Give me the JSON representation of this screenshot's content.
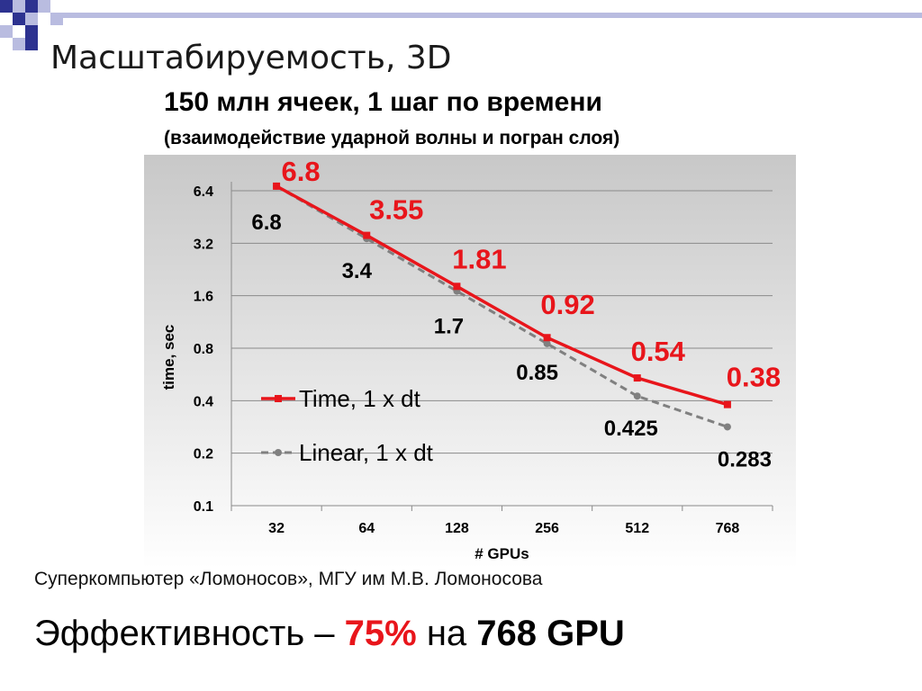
{
  "slide": {
    "title": "Масштабируемость, 3D",
    "footer": "Суперкомпьютер «Ломоносов», МГУ им М.В. Ломоносова",
    "summary": {
      "prefix": "Эффективность – ",
      "efficiency": "75%",
      "middle": " на ",
      "gpus": "768 GPU"
    }
  },
  "colors": {
    "time_series": "#e8151b",
    "linear_series": "#808080",
    "plot_background_top": "#c8c8c8",
    "plot_background_bottom": "#ffffff",
    "deco_square_dark": "#2d3290",
    "deco_square_light": "#b9bce0"
  },
  "chart_data": {
    "type": "line",
    "title": "150 млн ячеек, 1 шаг по времени",
    "subtitle": "(взаимодействие ударной волны и погран слоя)",
    "xlabel": "# GPUs",
    "ylabel": "time, sec",
    "y_scale": "log2",
    "ylim": [
      0.1,
      6.4
    ],
    "y_ticks": [
      "0.1",
      "0.2",
      "0.4",
      "0.8",
      "1.6",
      "3.2",
      "6.4"
    ],
    "categories": [
      "32",
      "64",
      "128",
      "256",
      "512",
      "768"
    ],
    "grid": "horizontal",
    "legend_position": "inside-bottom-left",
    "series": [
      {
        "name": "Time, 1 x dt",
        "style": "solid",
        "marker": "square",
        "color": "#e8151b",
        "values": [
          6.8,
          3.55,
          1.81,
          0.92,
          0.54,
          0.38
        ],
        "labels": [
          "6.8",
          "3.55",
          "1.81",
          "0.92",
          "0.54",
          "0.38"
        ]
      },
      {
        "name": "Linear, 1 x dt",
        "style": "dashed",
        "marker": "circle",
        "color": "#808080",
        "values": [
          6.8,
          3.4,
          1.7,
          0.85,
          0.425,
          0.283
        ],
        "labels": [
          "6.8",
          "3.4",
          "1.7",
          "0.85",
          "0.425",
          "0.283"
        ]
      }
    ]
  }
}
